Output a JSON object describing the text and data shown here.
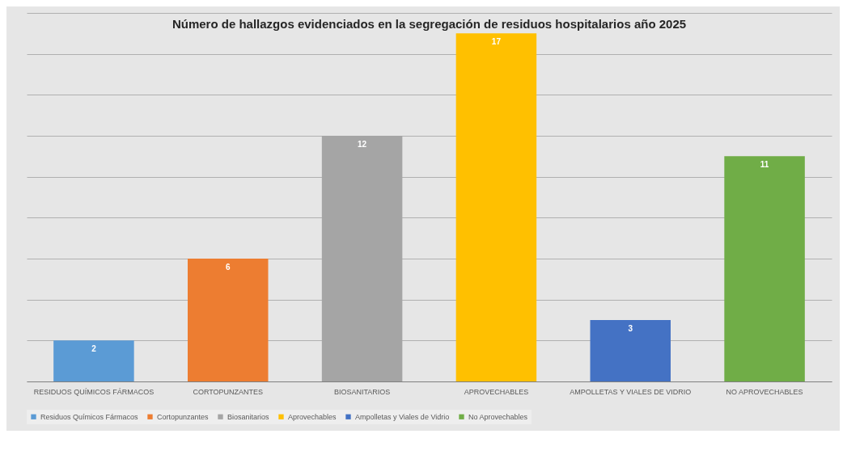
{
  "chart_data": {
    "type": "bar",
    "title": "Número de hallazgos evidenciados en la segregación de residuos hospitalarios año 2025",
    "categories": [
      "RESIDUOS QUÍMICOS FÁRMACOS",
      "CORTOPUNZANTES",
      "BIOSANITARIOS",
      "APROVECHABLES",
      "AMPOLLETAS Y VIALES DE VIDRIO",
      "NO APROVECHABLES"
    ],
    "series": [
      {
        "name": "Residuos Químicos Fármacos",
        "color": "#5b9bd5",
        "values": [
          2,
          null,
          null,
          null,
          null,
          null
        ]
      },
      {
        "name": "Cortopunzantes",
        "color": "#ed7d31",
        "values": [
          null,
          6,
          null,
          null,
          null,
          null
        ]
      },
      {
        "name": "Biosanitarios",
        "color": "#a5a5a5",
        "values": [
          null,
          null,
          12,
          null,
          null,
          null
        ]
      },
      {
        "name": "Aprovechables",
        "color": "#ffc000",
        "values": [
          null,
          null,
          null,
          17,
          null,
          null
        ]
      },
      {
        "name": "Ampolletas y Viales de Vidrio",
        "color": "#4472c4",
        "values": [
          null,
          null,
          null,
          null,
          3,
          null
        ]
      },
      {
        "name": "No Aprovechables",
        "color": "#70ad47",
        "values": [
          null,
          null,
          null,
          null,
          null,
          11
        ]
      }
    ],
    "stacked": true,
    "data_labels": true,
    "ylim": [
      0,
      18
    ],
    "yticks": [
      {
        "value": 0,
        "label": null
      },
      {
        "value": 2,
        "label": null
      },
      {
        "value": 4,
        "label": null
      },
      {
        "value": 6,
        "label": null
      },
      {
        "value": 8,
        "label": null
      },
      {
        "value": 10,
        "label": null
      },
      {
        "value": 12,
        "label": null
      },
      {
        "value": 14,
        "label": null
      },
      {
        "value": 16,
        "label": null
      },
      {
        "value": 18,
        "label": null
      }
    ],
    "tick_labels": "x",
    "grid": "y",
    "legend": "bottom"
  }
}
